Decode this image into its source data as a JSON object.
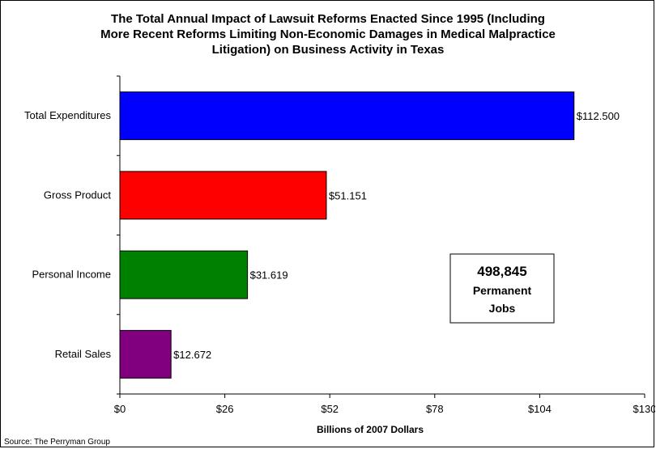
{
  "chart_data": {
    "type": "bar",
    "orientation": "horizontal",
    "title_lines": [
      "The Total Annual Impact of Lawsuit Reforms Enacted Since 1995 (Including",
      "More Recent Reforms Limiting Non-Economic Damages in Medical Malpractice",
      "Litigation) on Business Activity in Texas"
    ],
    "categories": [
      "Total Expenditures",
      "Gross Product",
      "Personal Income",
      "Retail Sales"
    ],
    "values": [
      112.5,
      51.151,
      31.619,
      12.672
    ],
    "data_labels": [
      "$112.500",
      "$51.151",
      "$31.619",
      "$12.672"
    ],
    "bar_colors": [
      "#0000FF",
      "#FF0000",
      "#008000",
      "#800080"
    ],
    "xlabel": "Billions of 2007 Dollars",
    "ylabel": "",
    "xlim": [
      0,
      130
    ],
    "xticks": [
      0,
      26,
      52,
      78,
      104,
      130
    ],
    "xtick_labels": [
      "$0",
      "$26",
      "$52",
      "$78",
      "$104",
      "$130"
    ],
    "grid": false,
    "legend": "none"
  },
  "callout": {
    "number": "498,845",
    "line1": "Permanent",
    "line2": "Jobs"
  },
  "source": "Source: The Perryman Group"
}
